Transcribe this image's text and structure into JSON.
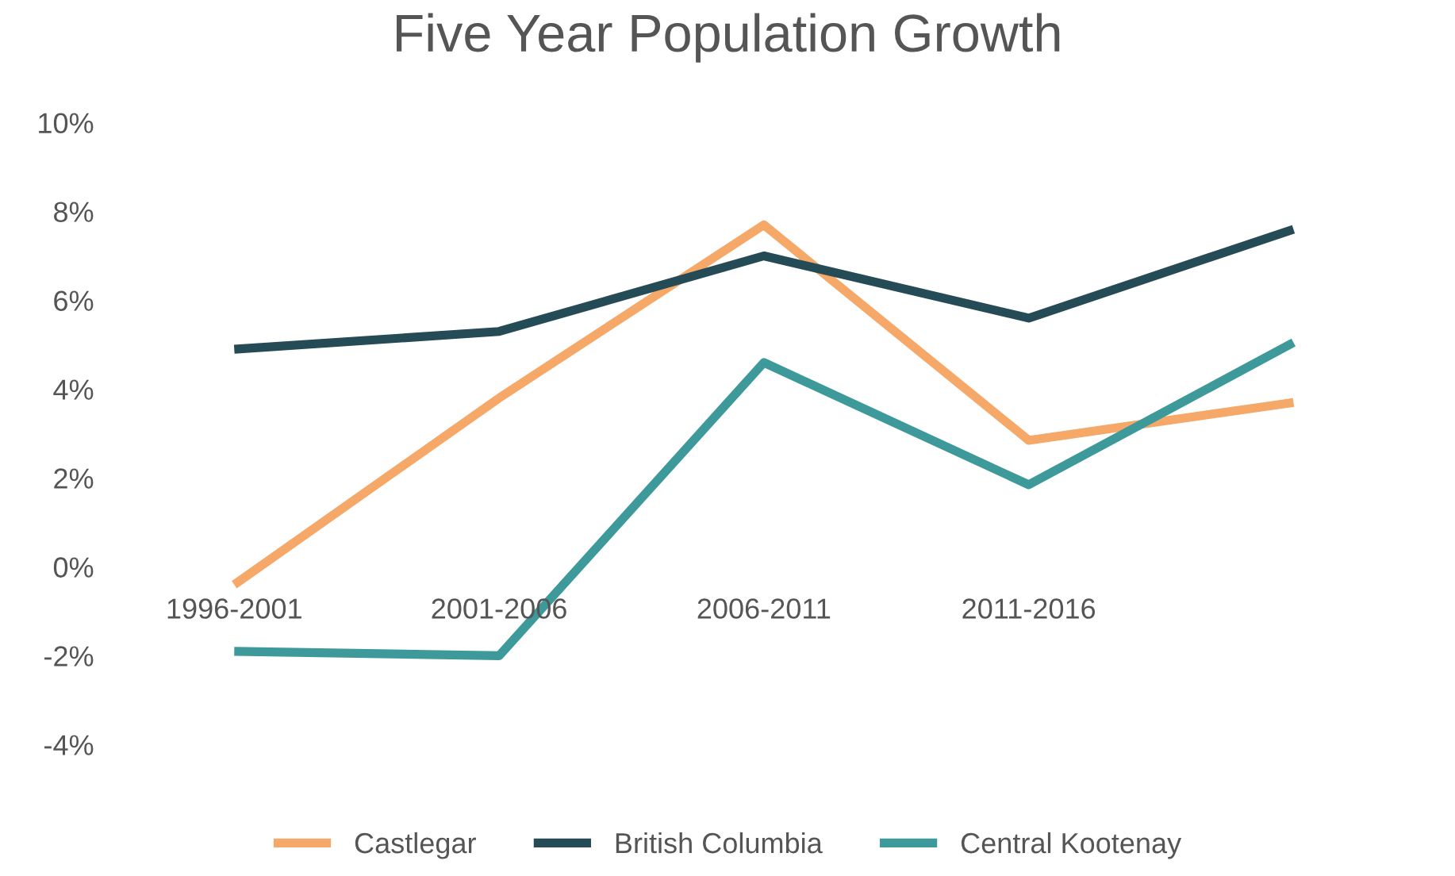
{
  "chart_data": {
    "type": "line",
    "title": "Five Year Population Growth",
    "categories": [
      "1996-2001",
      "2001-2006",
      "2006-2011",
      "2011-2016",
      null
    ],
    "series": [
      {
        "name": "Castlegar",
        "color": "#f6a868",
        "values": [
          -0.4,
          3.8,
          7.7,
          2.85,
          3.7
        ]
      },
      {
        "name": "British Columbia",
        "color": "#254b56",
        "values": [
          4.9,
          5.3,
          7.0,
          5.6,
          7.6
        ]
      },
      {
        "name": "Central Kootenay",
        "color": "#3e9a9a",
        "values": [
          -1.9,
          -2.0,
          4.6,
          1.85,
          5.05
        ]
      }
    ],
    "ylim": [
      -4,
      10
    ],
    "yticks": [
      {
        "value": -4,
        "label": "-4%"
      },
      {
        "value": -2,
        "label": "-2%"
      },
      {
        "value": 0,
        "label": "0%"
      },
      {
        "value": 2,
        "label": "2%"
      },
      {
        "value": 4,
        "label": "4%"
      },
      {
        "value": 6,
        "label": "6%"
      },
      {
        "value": 8,
        "label": "8%"
      },
      {
        "value": 10,
        "label": "10%"
      }
    ],
    "grid": false,
    "legend": "bottom",
    "marker": "none",
    "line_style": "solid"
  }
}
